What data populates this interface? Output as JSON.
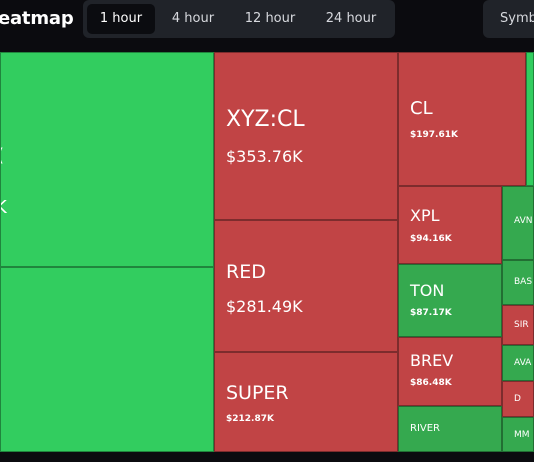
{
  "header": {
    "title": "leatmap",
    "tabs": [
      {
        "label": "1 hour",
        "active": true
      },
      {
        "label": "4 hour",
        "active": false
      },
      {
        "label": "12 hour",
        "active": false
      },
      {
        "label": "24 hour",
        "active": false
      }
    ],
    "symbol_button": "Symb"
  },
  "colors": {
    "up": "#32cd5f",
    "up_dark": "#35a94f",
    "down": "#c14445",
    "background": "#0b0b0f"
  },
  "tiles": [
    {
      "symbol": "XYZ:CL",
      "value": "$353.76K",
      "trend": "down"
    },
    {
      "symbol": "CL",
      "value": "$197.61K",
      "trend": "down"
    },
    {
      "symbol": "RED",
      "value": "$281.49K",
      "trend": "down"
    },
    {
      "symbol": "XPL",
      "value": "$94.16K",
      "trend": "down"
    },
    {
      "symbol": "TON",
      "value": "$87.17K",
      "trend": "up"
    },
    {
      "symbol": "BREV",
      "value": "$86.48K",
      "trend": "down"
    },
    {
      "symbol": "SUPER",
      "value": "$212.87K",
      "trend": "down"
    },
    {
      "symbol": "RIVER",
      "value": "",
      "trend": "up"
    },
    {
      "symbol": "AVN",
      "value": "",
      "trend": "up"
    },
    {
      "symbol": "BAS",
      "value": "",
      "trend": "up"
    },
    {
      "symbol": "SIR",
      "value": "",
      "trend": "down"
    },
    {
      "symbol": "AVA",
      "value": "",
      "trend": "up"
    },
    {
      "symbol": "D",
      "value": "",
      "trend": "down"
    },
    {
      "symbol": "MM",
      "value": "",
      "trend": "up"
    }
  ],
  "partial_labels": {
    "left_top_glyph": ":",
    "left_mid_glyph": "(",
    "left_bottom_glyph": "K"
  }
}
